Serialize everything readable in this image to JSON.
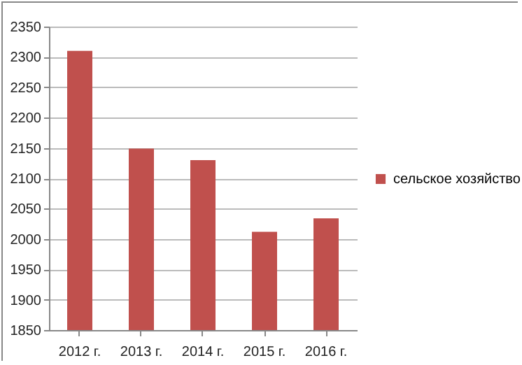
{
  "chart_data": {
    "type": "bar",
    "categories": [
      "2012 г.",
      "2013 г.",
      "2014 г.",
      "2015 г.",
      "2016 г."
    ],
    "series": [
      {
        "name": "сельское хозяйство",
        "color": "#c0504d",
        "values": [
          2310,
          2149,
          2130,
          2012,
          2034
        ]
      }
    ],
    "ylim": [
      1850,
      2350
    ],
    "yticks": [
      1850,
      1900,
      1950,
      2000,
      2050,
      2100,
      2150,
      2200,
      2250,
      2300,
      2350
    ],
    "grid": "y",
    "legend": "right"
  }
}
